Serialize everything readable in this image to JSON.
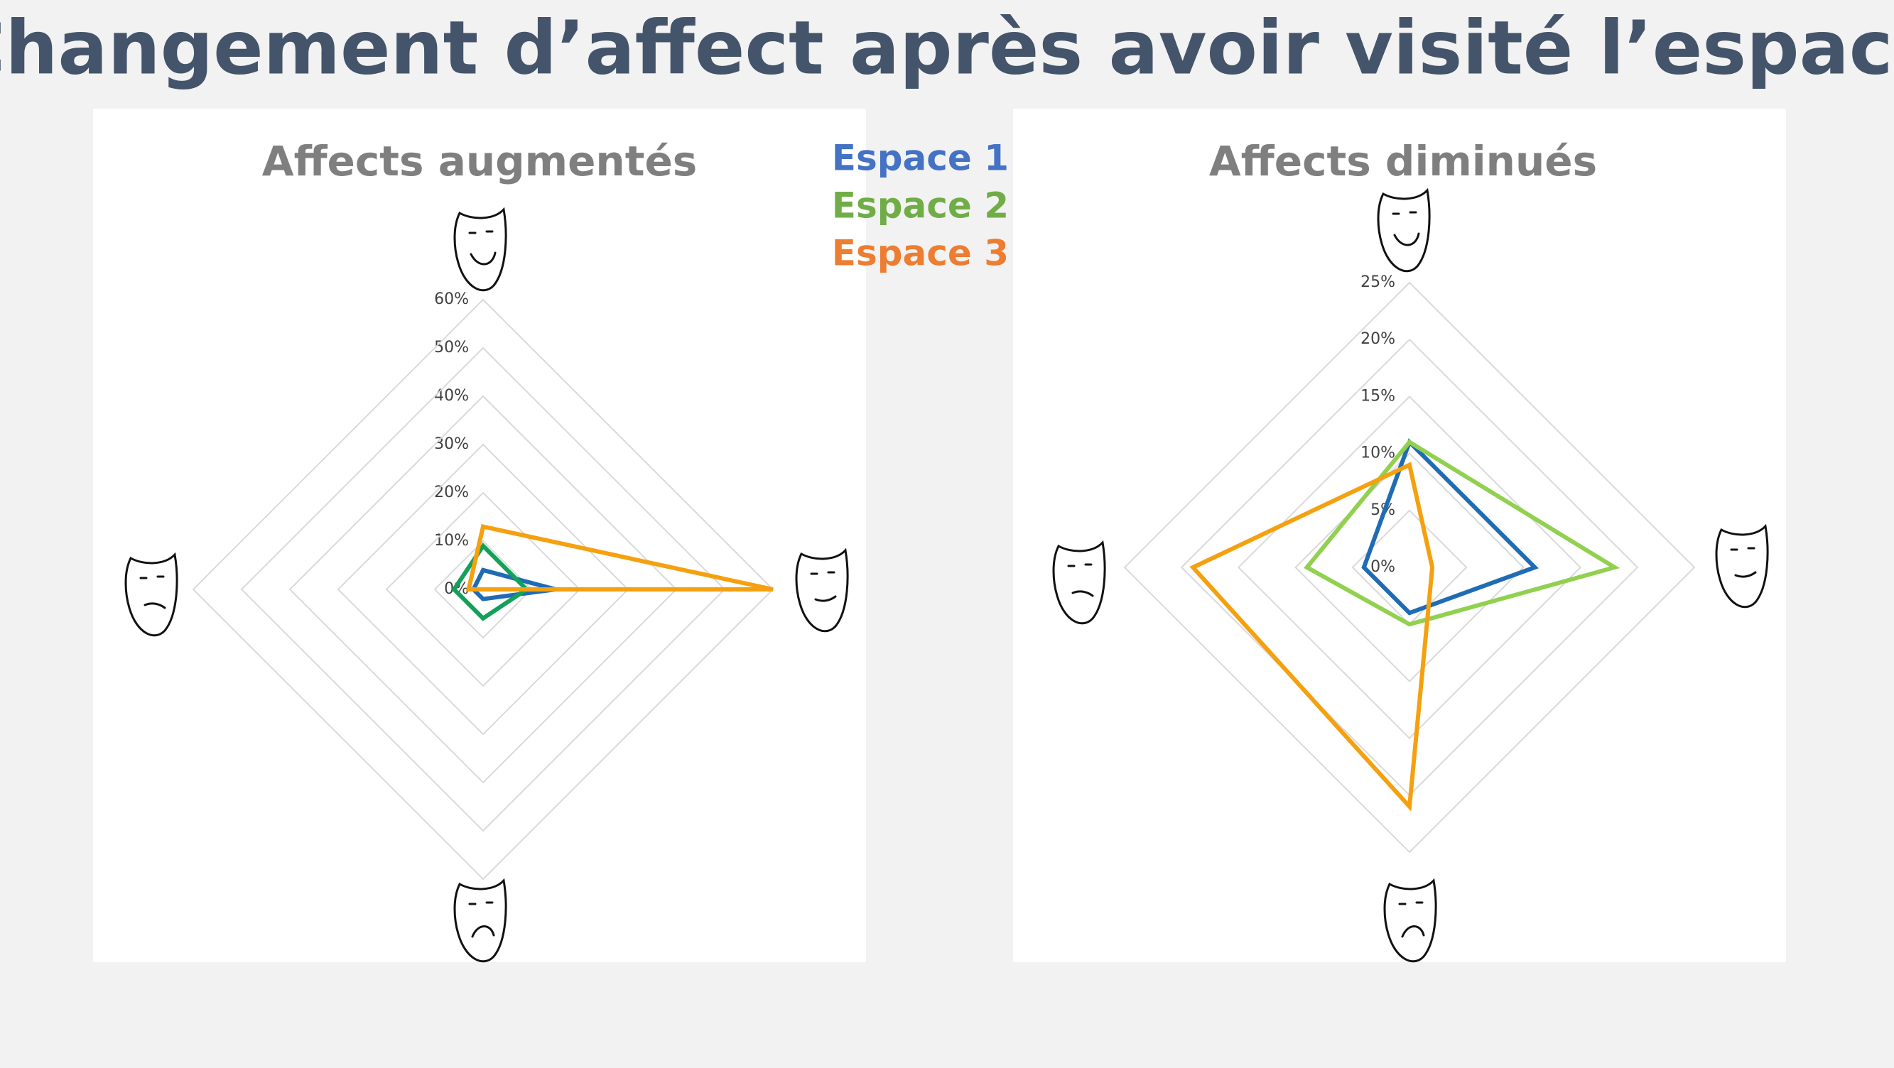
{
  "title": "Changement d’affect après avoir visité l’espace",
  "legend": {
    "colors": [
      "#4472c4",
      "#70ad47",
      "#ed7d31"
    ]
  },
  "chart_data": [
    {
      "type": "radar",
      "title": "Affects augmentés",
      "categories": [
        null,
        null,
        null,
        null
      ],
      "series": [
        {
          "name": "Espace 1",
          "color": "#1f6cb4",
          "values": [
            4,
            15,
            2,
            2
          ]
        },
        {
          "name": "Espace 2",
          "color": "#13a058",
          "values": [
            9,
            9,
            6,
            6
          ]
        },
        {
          "name": "Espace 3",
          "color": "#f5a00f",
          "values": [
            13,
            60,
            0,
            3
          ]
        }
      ],
      "ylim": [
        0,
        60
      ],
      "yticks": [
        {
          "value": 0,
          "label": "0%"
        },
        {
          "value": 10,
          "label": "10%"
        },
        {
          "value": 20,
          "label": "20%"
        },
        {
          "value": 30,
          "label": "30%"
        },
        {
          "value": 40,
          "label": "40%"
        },
        {
          "value": 50,
          "label": "50%"
        },
        {
          "value": 60,
          "label": "60%"
        }
      ],
      "grid": true
    },
    {
      "type": "radar",
      "title": "Affects diminués",
      "categories": [
        null,
        null,
        null,
        null
      ],
      "series": [
        {
          "name": "Espace 1",
          "color": "#1f6cb4",
          "values": [
            11,
            11,
            4,
            4
          ]
        },
        {
          "name": "Espace 2",
          "color": "#92d050",
          "values": [
            11,
            18,
            5,
            9
          ]
        },
        {
          "name": "Espace 3",
          "color": "#f5a00f",
          "values": [
            9,
            2,
            21,
            19
          ]
        }
      ],
      "ylim": [
        0,
        25
      ],
      "yticks": [
        {
          "value": 0,
          "label": "0%"
        },
        {
          "value": 5,
          "label": "5%"
        },
        {
          "value": 10,
          "label": "10%"
        },
        {
          "value": 15,
          "label": "15%"
        },
        {
          "value": 20,
          "label": "20%"
        },
        {
          "value": 25,
          "label": "25%"
        }
      ],
      "grid": true
    }
  ]
}
